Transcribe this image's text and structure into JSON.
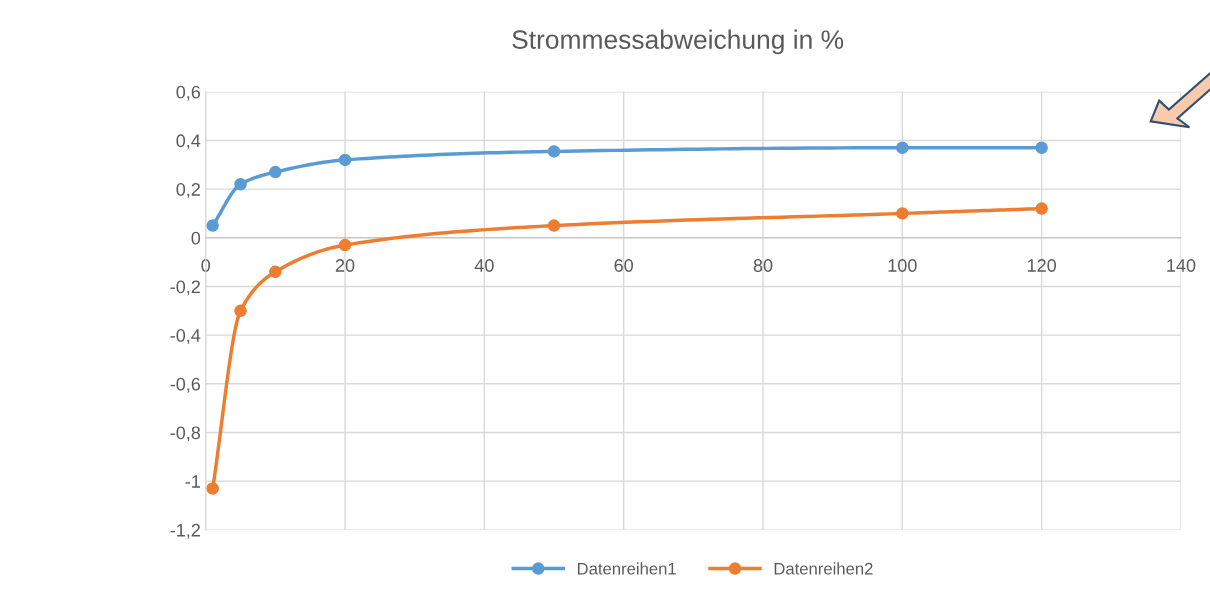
{
  "chart_data": {
    "type": "line",
    "title": "Strommessabweichung in %",
    "x": [
      1,
      5,
      10,
      20,
      50,
      100,
      120
    ],
    "series": [
      {
        "name": "Datenreihen1",
        "color": "#5b9bd5",
        "values": [
          0.05,
          0.22,
          0.27,
          0.32,
          0.355,
          0.37,
          0.37
        ]
      },
      {
        "name": "Datenreihen2",
        "color": "#ed7d31",
        "values": [
          -1.03,
          -0.3,
          -0.14,
          -0.03,
          0.05,
          0.1,
          0.12
        ]
      }
    ],
    "xlim": [
      0,
      140
    ],
    "xticks": [
      0,
      20,
      40,
      60,
      80,
      100,
      120,
      140
    ],
    "ylim": [
      -1.2,
      0.6
    ],
    "yticks": [
      {
        "value": -1.2,
        "label": "-1,2"
      },
      {
        "value": -1.0,
        "label": "-1"
      },
      {
        "value": -0.8,
        "label": "-0,8"
      },
      {
        "value": -0.6,
        "label": "-0,6"
      },
      {
        "value": -0.4,
        "label": "-0,4"
      },
      {
        "value": -0.2,
        "label": "-0,2"
      },
      {
        "value": 0,
        "label": "0"
      },
      {
        "value": 0.2,
        "label": "0,2"
      },
      {
        "value": 0.4,
        "label": "0,4"
      },
      {
        "value": 0.6,
        "label": "0,6"
      }
    ],
    "grid": true,
    "legend": "bottom",
    "marker": "circle",
    "line_style": "solid"
  }
}
